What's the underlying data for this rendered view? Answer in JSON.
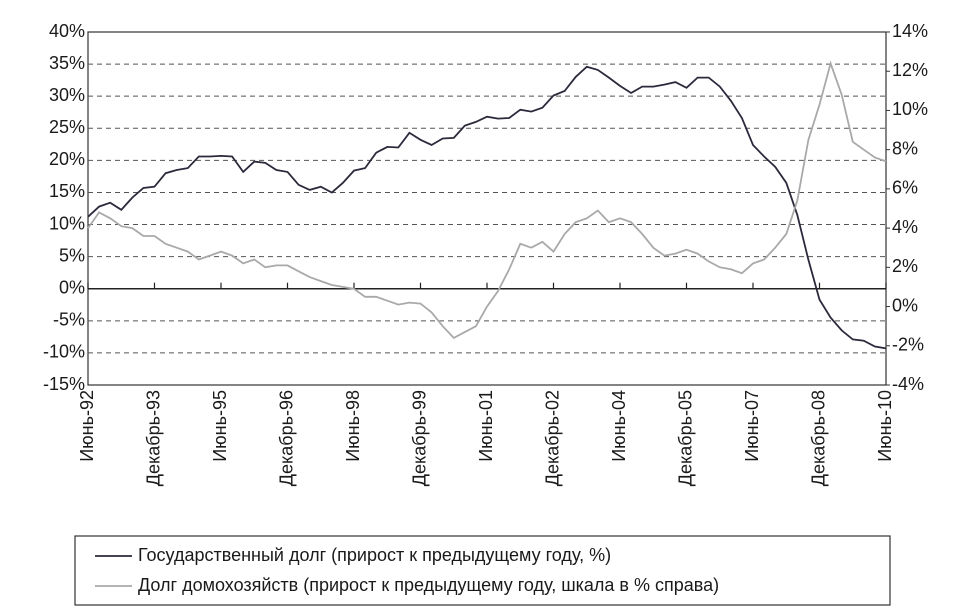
{
  "chart_data": {
    "type": "line",
    "categories": [
      "Июнь-92",
      null,
      null,
      null,
      null,
      null,
      "Декабрь-93",
      null,
      null,
      null,
      null,
      null,
      "Июнь-95",
      null,
      null,
      null,
      null,
      null,
      "Декабрь-96",
      null,
      null,
      null,
      null,
      null,
      "Июнь-98",
      null,
      null,
      null,
      null,
      null,
      "Декабрь-99",
      null,
      null,
      null,
      null,
      null,
      "Июнь-01",
      null,
      null,
      null,
      null,
      null,
      "Декабрь-02",
      null,
      null,
      null,
      null,
      null,
      "Июнь-04",
      null,
      null,
      null,
      null,
      null,
      "Декабрь-05",
      null,
      null,
      null,
      null,
      null,
      "Июнь-07",
      null,
      null,
      null,
      null,
      null,
      "Декабрь-08",
      null,
      null,
      null,
      null,
      null,
      "Июнь-10"
    ],
    "series": [
      {
        "name": "Государственный долг (прирост к предыдущему году, %)",
        "color": "#2a2a3c",
        "values": [
          11.2,
          12.8,
          13.4,
          12.3,
          14.2,
          15.7,
          15.9,
          18,
          18.5,
          18.8,
          20.6,
          20.6,
          20.7,
          20.6,
          18.2,
          19.8,
          19.6,
          18.5,
          18.2,
          16.2,
          15.4,
          15.9,
          15,
          16.5,
          18.4,
          18.8,
          21.2,
          22.1,
          22,
          24.3,
          23.2,
          22.4,
          23.4,
          23.5,
          25.4,
          26,
          26.8,
          26.5,
          26.6,
          27.9,
          27.6,
          28.2,
          30.1,
          30.8,
          33,
          34.6,
          34.1,
          32.9,
          31.6,
          30.5,
          31.5,
          31.5,
          31.8,
          32.2,
          31.3,
          32.9,
          32.9,
          31.5,
          29.3,
          26.6,
          22.4,
          20.6,
          19,
          16.5,
          11.5,
          4.5,
          -1.7,
          -4.5,
          -6.5,
          -7.9,
          -8.1,
          -9,
          -9.3
        ]
      },
      {
        "name": "Долг домохозяйств  (прирост к предыдущему году, шкала в % справа)",
        "color": "#a9a9a9",
        "axis": "y2",
        "values": [
          4.0,
          4.8,
          4.5,
          4.1,
          4.0,
          3.6,
          3.6,
          3.2,
          3.0,
          2.8,
          2.4,
          2.6,
          2.8,
          2.6,
          2.2,
          2.4,
          2.0,
          2.1,
          2.1,
          1.8,
          1.5,
          1.3,
          1.1,
          1.0,
          0.9,
          0.5,
          0.5,
          0.3,
          0.1,
          0.2,
          0.15,
          -0.3,
          -1.0,
          -1.6,
          -1.3,
          -1.0,
          0,
          0.8,
          1.9,
          3.2,
          3.0,
          3.3,
          2.8,
          3.7,
          4.3,
          4.5,
          4.9,
          4.3,
          4.5,
          4.3,
          3.7,
          3.0,
          2.6,
          2.7,
          2.9,
          2.7,
          2.3,
          2.0,
          1.9,
          1.7,
          2.2,
          2.4,
          3.0,
          3.7,
          5.4,
          8.5,
          10.3,
          12.4,
          10.8,
          8.4,
          8.0,
          7.6,
          7.4
        ]
      }
    ],
    "ylim": [
      -15,
      40
    ],
    "yticks": [
      {
        "value": -15,
        "label": "-15%"
      },
      {
        "value": -10,
        "label": "-10%"
      },
      {
        "value": -5,
        "label": "-5%"
      },
      {
        "value": 0,
        "label": "0%"
      },
      {
        "value": 5,
        "label": "5%"
      },
      {
        "value": 10,
        "label": "10%"
      },
      {
        "value": 15,
        "label": "15%"
      },
      {
        "value": 20,
        "label": "20%"
      },
      {
        "value": 25,
        "label": "25%"
      },
      {
        "value": 30,
        "label": "30%"
      },
      {
        "value": 35,
        "label": "35%"
      },
      {
        "value": 40,
        "label": "40%"
      }
    ],
    "y2lim": [
      -4,
      14
    ],
    "y2ticks": [
      {
        "value": -4,
        "label": "-4%"
      },
      {
        "value": -2,
        "label": "-2%"
      },
      {
        "value": 0,
        "label": "0%"
      },
      {
        "value": 2,
        "label": "2%"
      },
      {
        "value": 4,
        "label": "4%"
      },
      {
        "value": 6,
        "label": "6%"
      },
      {
        "value": 8,
        "label": "8%"
      },
      {
        "value": 10,
        "label": "10%"
      },
      {
        "value": 12,
        "label": "12%"
      },
      {
        "value": 14,
        "label": "14%"
      }
    ],
    "grid": true,
    "legend": "bottom"
  }
}
